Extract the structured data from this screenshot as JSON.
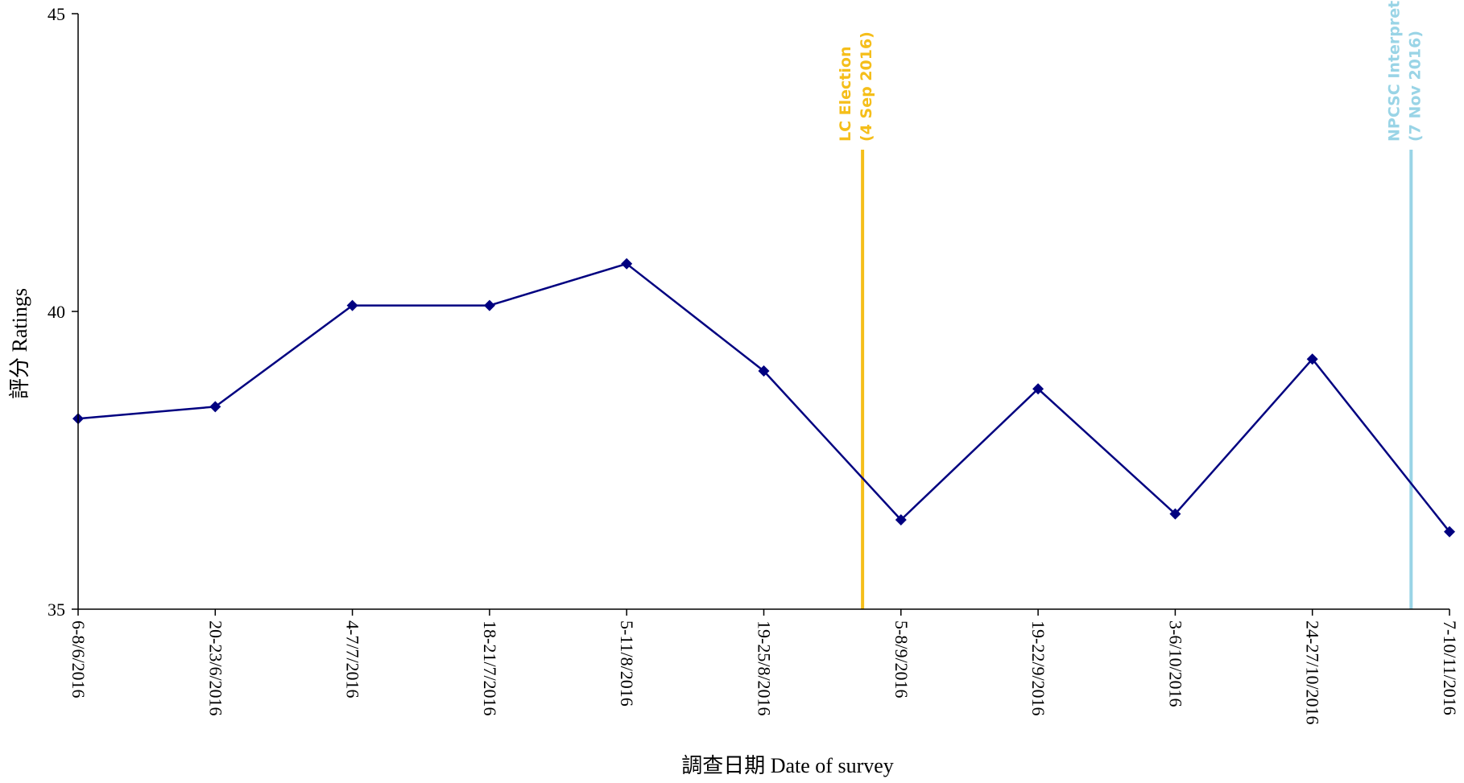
{
  "chart_data": {
    "type": "line",
    "xlabel": "調查日期 Date of survey",
    "ylabel": "評分 Ratings",
    "ylim": [
      35,
      45
    ],
    "yticks": [
      35,
      40,
      45
    ],
    "grid": false,
    "categories": [
      "6-8/6/2016",
      "20-23/6/2016",
      "4-7/7/2016",
      "18-21/7/2016",
      "5-11/8/2016",
      "19-25/8/2016",
      "5-8/9/2016",
      "19-22/9/2016",
      "3-6/10/2016",
      "24-27/10/2016",
      "7-10/11/2016"
    ],
    "series": [
      {
        "values": [
          38.2,
          38.4,
          40.1,
          40.1,
          40.8,
          39.0,
          36.5,
          38.7,
          36.6,
          39.2,
          36.3
        ],
        "color": "#000080",
        "marker": "diamond"
      }
    ],
    "events": [
      {
        "line1": "LC Election",
        "line2": "(4 Sep 2016)",
        "after_category": 5,
        "color": "#F5BE1A"
      },
      {
        "line1": "NPCSC Interpretation",
        "line2": "(7 Nov 2016)",
        "after_category": 9,
        "color": "#99D4E6"
      }
    ]
  }
}
